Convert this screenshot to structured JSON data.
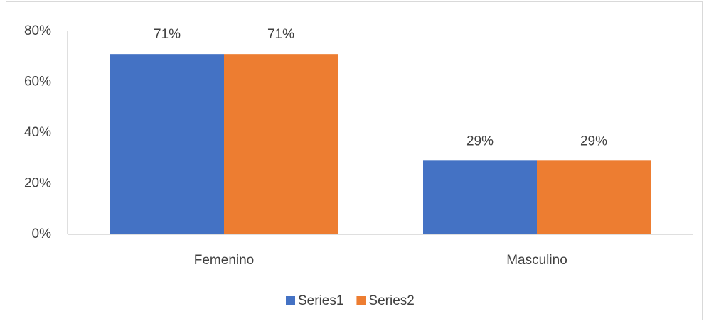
{
  "chart_data": {
    "type": "bar",
    "categories": [
      "Femenino",
      "Masculino"
    ],
    "series": [
      {
        "name": "Series1",
        "color": "#4472c4",
        "values": [
          71,
          29
        ],
        "value_labels": [
          "71%",
          "29%"
        ]
      },
      {
        "name": "Series2",
        "color": "#ed7d31",
        "values": [
          71,
          29
        ],
        "value_labels": [
          "71%",
          "29%"
        ]
      }
    ],
    "ylim": [
      0,
      80
    ],
    "yticks": [
      {
        "value": 0,
        "label": "0%"
      },
      {
        "value": 20,
        "label": "20%"
      },
      {
        "value": 40,
        "label": "40%"
      },
      {
        "value": 60,
        "label": "60%"
      },
      {
        "value": 80,
        "label": "80%"
      }
    ],
    "grid": false,
    "legend": "bottom"
  }
}
